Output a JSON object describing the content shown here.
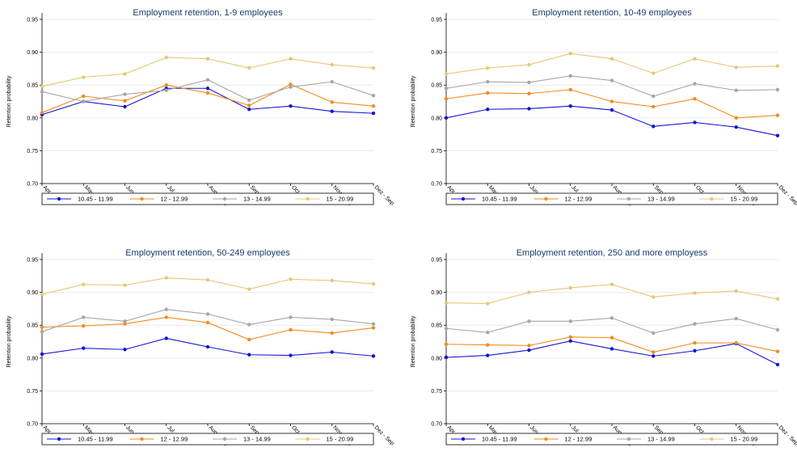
{
  "chart_data": [
    {
      "type": "line",
      "title": "Employment retention, 1-9 employees",
      "ylabel": "Retention probability",
      "ylim": [
        0.7,
        0.95
      ],
      "yticks": [
        "0.70",
        "0.75",
        "0.80",
        "0.85",
        "0.90",
        "0.95"
      ],
      "categories": [
        "Apr - Jan",
        "May - Feb",
        "Jun - Mar",
        "Jul - Apr",
        "Aug - May",
        "Sep - Jun",
        "Oct - Jul",
        "Nov - Aug",
        "Dez - Sep"
      ],
      "grid": true,
      "legend": "bottom",
      "series": [
        {
          "name": "10.45 - 11.99",
          "color": "#1414d2",
          "values": [
            0.805,
            0.825,
            0.817,
            0.845,
            0.845,
            0.813,
            0.818,
            0.81,
            0.807
          ]
        },
        {
          "name": "12 - 12.99",
          "color": "#f28a1e",
          "values": [
            0.808,
            0.833,
            0.826,
            0.85,
            0.838,
            0.819,
            0.851,
            0.824,
            0.818
          ]
        },
        {
          "name": "13 - 14.99",
          "color": "#a6a6a6",
          "values": [
            0.84,
            0.825,
            0.836,
            0.842,
            0.858,
            0.827,
            0.847,
            0.855,
            0.834
          ]
        },
        {
          "name": "15 - 20.99",
          "color": "#e6c778",
          "values": [
            0.848,
            0.862,
            0.867,
            0.892,
            0.89,
            0.876,
            0.89,
            0.881,
            0.876
          ]
        }
      ]
    },
    {
      "type": "line",
      "title": "Employment retention, 10-49 employees",
      "ylabel": "Retention probability",
      "ylim": [
        0.7,
        0.95
      ],
      "yticks": [
        "0.70",
        "0.75",
        "0.80",
        "0.85",
        "0.90",
        "0.95"
      ],
      "categories": [
        "Apr - Jan",
        "May - Feb",
        "Jun - Mar",
        "Jul - Apr",
        "Aug - May",
        "Sep - Jun",
        "Oct - Jul",
        "Nov - Aug",
        "Dez - Sep"
      ],
      "grid": true,
      "legend": "bottom",
      "series": [
        {
          "name": "10.45 - 11.99",
          "color": "#1414d2",
          "values": [
            0.8,
            0.813,
            0.814,
            0.818,
            0.812,
            0.787,
            0.793,
            0.786,
            0.773
          ]
        },
        {
          "name": "12 - 12.99",
          "color": "#f28a1e",
          "values": [
            0.829,
            0.838,
            0.837,
            0.843,
            0.825,
            0.817,
            0.829,
            0.8,
            0.804
          ]
        },
        {
          "name": "13 - 14.99",
          "color": "#a6a6a6",
          "values": [
            0.845,
            0.855,
            0.854,
            0.864,
            0.857,
            0.833,
            0.852,
            0.842,
            0.843
          ]
        },
        {
          "name": "15 - 20.99",
          "color": "#e6c778",
          "values": [
            0.867,
            0.876,
            0.881,
            0.898,
            0.89,
            0.868,
            0.89,
            0.877,
            0.879
          ]
        }
      ]
    },
    {
      "type": "line",
      "title": "Employment retention, 50-249 employees",
      "ylabel": "Retention probability",
      "ylim": [
        0.7,
        0.95
      ],
      "yticks": [
        "0.70",
        "0.75",
        "0.80",
        "0.85",
        "0.90",
        "0.95"
      ],
      "categories": [
        "Apr - Jan",
        "May - Feb",
        "Jun - Mar",
        "Jul - Apr",
        "Aug - May",
        "Sep - Jun",
        "Oct - Jul",
        "Nov - Aug",
        "Dez - Sep"
      ],
      "grid": true,
      "legend": "bottom",
      "series": [
        {
          "name": "10.45 - 11.99",
          "color": "#1414d2",
          "values": [
            0.806,
            0.815,
            0.813,
            0.83,
            0.817,
            0.805,
            0.804,
            0.809,
            0.803
          ]
        },
        {
          "name": "12 - 12.99",
          "color": "#f28a1e",
          "values": [
            0.847,
            0.849,
            0.852,
            0.862,
            0.854,
            0.828,
            0.843,
            0.838,
            0.846
          ]
        },
        {
          "name": "13 - 14.99",
          "color": "#a6a6a6",
          "values": [
            0.84,
            0.862,
            0.856,
            0.874,
            0.867,
            0.851,
            0.862,
            0.859,
            0.852
          ]
        },
        {
          "name": "15 - 20.99",
          "color": "#e6c778",
          "values": [
            0.897,
            0.912,
            0.911,
            0.922,
            0.919,
            0.905,
            0.92,
            0.918,
            0.913
          ]
        }
      ]
    },
    {
      "type": "line",
      "title": "Employment retention, 250 and more employess",
      "ylabel": "Retention probability",
      "ylim": [
        0.7,
        0.95
      ],
      "yticks": [
        "0.70",
        "0.75",
        "0.80",
        "0.85",
        "0.90",
        "0.95"
      ],
      "categories": [
        "Apr - Jan",
        "May - Feb",
        "Jun - Mar",
        "Jul - Apr",
        "Aug - May",
        "Sep - Jun",
        "Oct - Jul",
        "Nov - Aug",
        "Dez - Sep"
      ],
      "grid": true,
      "legend": "bottom",
      "series": [
        {
          "name": "10.45 - 11.99",
          "color": "#1414d2",
          "values": [
            0.801,
            0.804,
            0.812,
            0.826,
            0.814,
            0.803,
            0.811,
            0.822,
            0.79
          ]
        },
        {
          "name": "12 - 12.99",
          "color": "#f28a1e",
          "values": [
            0.821,
            0.82,
            0.819,
            0.832,
            0.831,
            0.809,
            0.823,
            0.823,
            0.81
          ]
        },
        {
          "name": "13 - 14.99",
          "color": "#a6a6a6",
          "values": [
            0.845,
            0.839,
            0.856,
            0.856,
            0.861,
            0.838,
            0.852,
            0.86,
            0.843
          ]
        },
        {
          "name": "15 - 20.99",
          "color": "#e6c778",
          "values": [
            0.884,
            0.883,
            0.9,
            0.907,
            0.912,
            0.893,
            0.899,
            0.902,
            0.89
          ]
        }
      ]
    }
  ]
}
